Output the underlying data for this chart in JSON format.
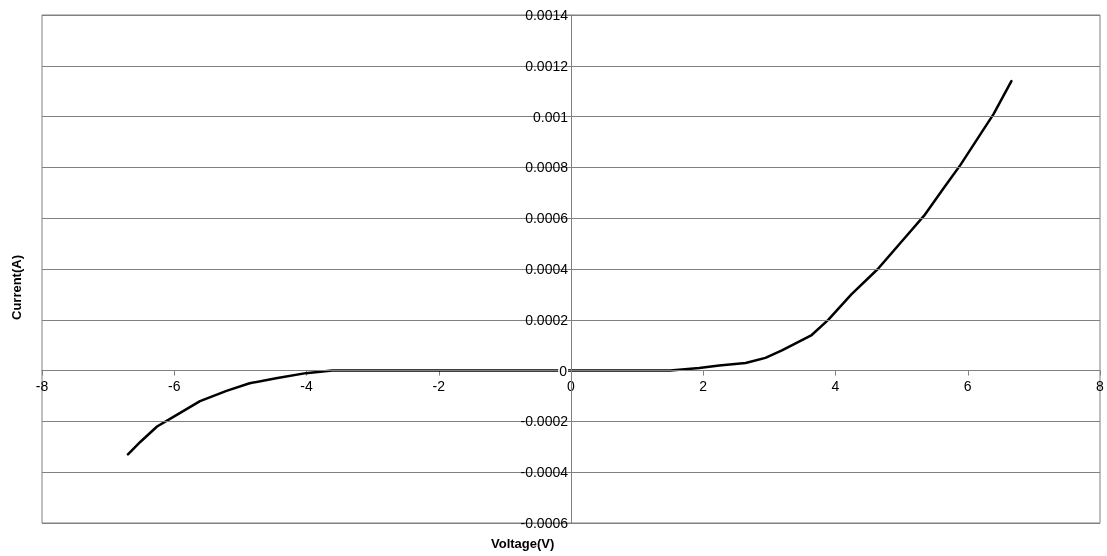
{
  "chart_data": {
    "type": "line",
    "xlabel": "Voltage(V)",
    "ylabel": "Current(A)",
    "xlim": [
      -8,
      8
    ],
    "xticks": [
      -8,
      -6,
      -4,
      -2,
      0,
      2,
      4,
      6,
      8
    ],
    "ylim": [
      -0.0006,
      0.0014
    ],
    "yticks": [
      -0.0006,
      -0.0004,
      -0.0002,
      0,
      0.0002,
      0.0004,
      0.0006,
      0.0008,
      0.001,
      0.0012,
      0.0014
    ],
    "grid": "y",
    "series": [
      {
        "color": "#000000",
        "x": [
          -6.7,
          -6.51,
          -6.26,
          -6.0,
          -5.61,
          -5.21,
          -4.86,
          -4.46,
          -4.01,
          -3.61,
          -2.96,
          -2,
          -1,
          0,
          1.0,
          1.5,
          1.94,
          2.24,
          2.64,
          2.94,
          3.19,
          3.64,
          3.89,
          4.24,
          4.64,
          5.04,
          5.34,
          5.64,
          5.89,
          6.19,
          6.39,
          6.66
        ],
        "values": [
          -0.00033,
          -0.00028,
          -0.00022,
          -0.00018,
          -0.00012,
          -8e-05,
          -5e-05,
          -3e-05,
          -1e-05,
          0,
          0,
          0,
          0,
          0,
          0,
          0,
          1e-05,
          2e-05,
          3e-05,
          5e-05,
          8e-05,
          0.00014,
          0.0002,
          0.0003,
          0.0004,
          0.00052,
          0.00061,
          0.00072,
          0.00081,
          0.00093,
          0.00101,
          0.00114
        ]
      }
    ]
  }
}
